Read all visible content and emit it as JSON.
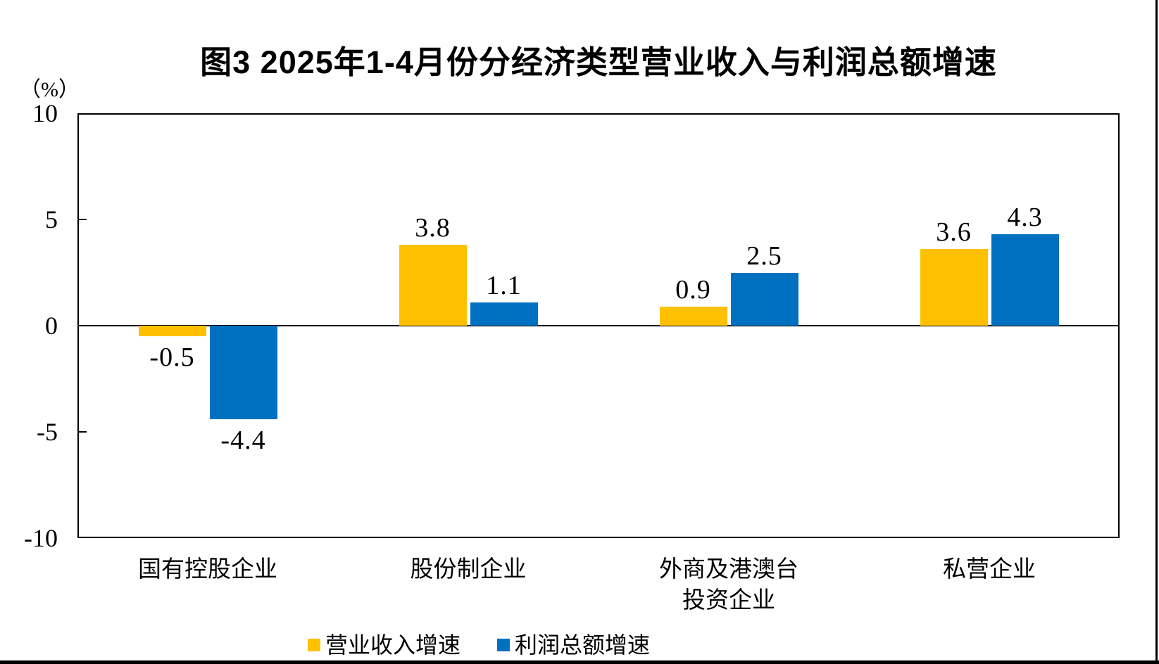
{
  "chart_data": {
    "type": "bar",
    "title": "图3 2025年1-4月份分经济类型营业收入与利润总额增速",
    "unit_label": "（%）",
    "categories": [
      "国有控股企业",
      "股份制企业",
      "外商及港澳台\n投资企业",
      "私营企业"
    ],
    "series": [
      {
        "name": "营业收入增速",
        "color": "#FFC000",
        "values": [
          -0.5,
          3.8,
          0.9,
          3.6
        ]
      },
      {
        "name": "利润总额增速",
        "color": "#0070C0",
        "values": [
          -4.4,
          1.1,
          2.5,
          4.3
        ]
      }
    ],
    "ylim": [
      -10,
      10
    ],
    "yticks": [
      10,
      5,
      0,
      -5,
      -10
    ],
    "ylabel": "",
    "xlabel": "",
    "grid": false,
    "legend_position": "bottom",
    "value_labels_decimals": 1
  },
  "page": {
    "background": "#ffffff",
    "axis_color": "#000000",
    "text_color": "#000000"
  }
}
